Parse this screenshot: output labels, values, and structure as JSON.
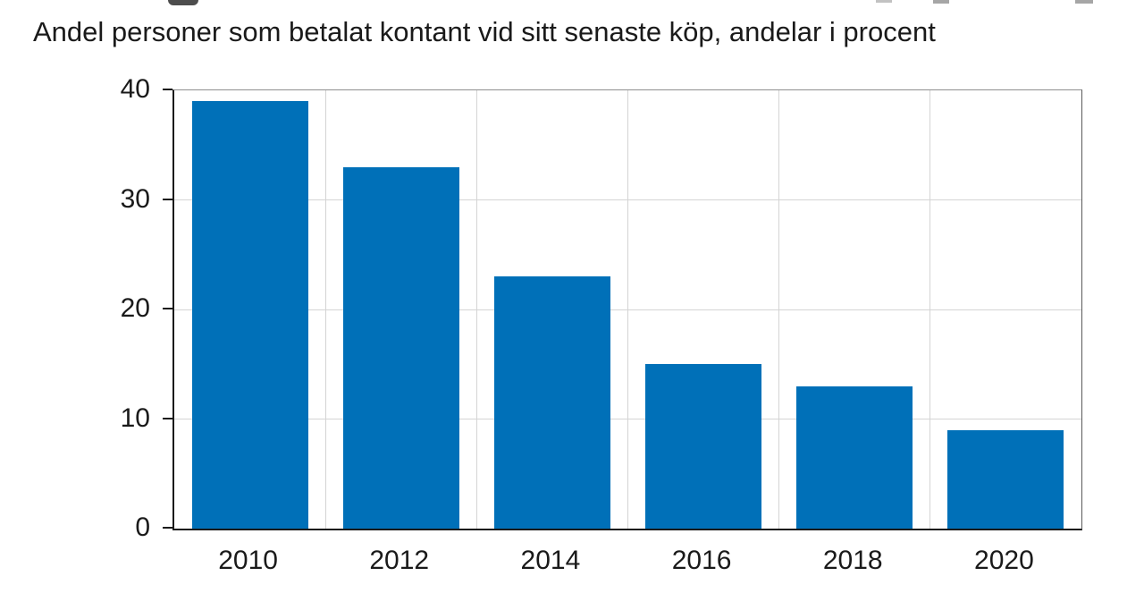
{
  "chart_data": {
    "type": "bar",
    "title": "Andel personer som betalat kontant vid sitt senaste köp, andelar i procent",
    "categories": [
      "2010",
      "2012",
      "2014",
      "2016",
      "2018",
      "2020"
    ],
    "values": [
      39,
      33,
      23,
      15,
      13,
      9
    ],
    "xlabel": "",
    "ylabel": "",
    "ylim": [
      0,
      40
    ],
    "yticks": [
      0,
      10,
      20,
      30,
      40
    ],
    "grid": true,
    "legend": "none",
    "bar_color": "#0070b8",
    "axis_color": "#1a1a1a",
    "gridline_color": "#d4d4d4",
    "background_color": "#ffffff"
  }
}
